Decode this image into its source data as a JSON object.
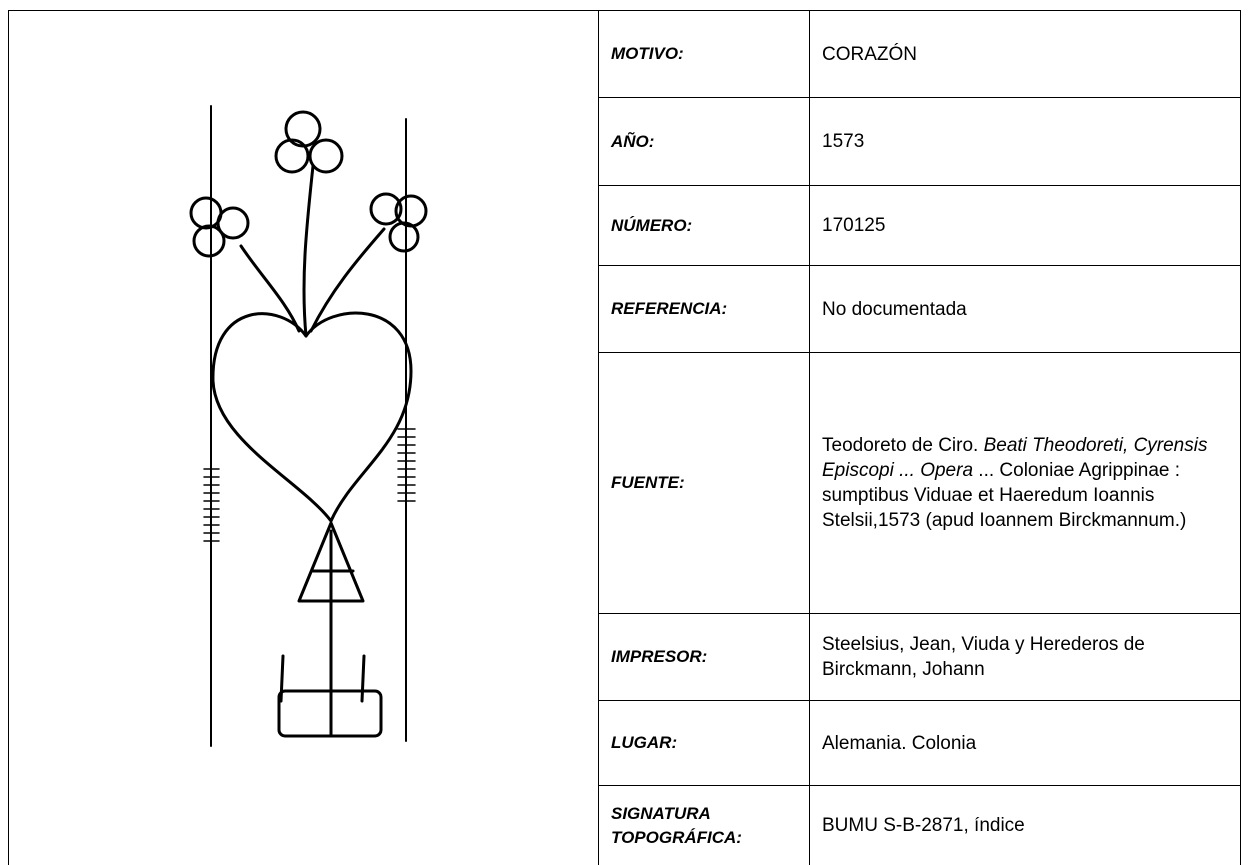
{
  "table": {
    "rows": [
      {
        "label": "MOTIVO:",
        "value": "CORAZÓN"
      },
      {
        "label": "AÑO:",
        "value": "1573"
      },
      {
        "label": "NÚMERO:",
        "value": "170125"
      },
      {
        "label": "REFERENCIA:",
        "value": "No documentada"
      },
      {
        "label": "FUENTE:",
        "value_parts": [
          {
            "text": "Teodoreto de Ciro. ",
            "italic": false
          },
          {
            "text": "Beati Theodoreti, Cyrensis Episcopi ... Opera",
            "italic": true
          },
          {
            "text": "  ... Coloniae Agrippinae : sumptibus Viduae et Haeredum Ioannis Stelsii,1573 (apud Ioannem Birckmannum.)",
            "italic": false
          }
        ]
      },
      {
        "label": "IMPRESOR:",
        "value": "Steelsius, Jean, Viuda y Herederos de Birckmann, Johann"
      },
      {
        "label": "LUGAR:",
        "value": "Alemania. Colonia"
      },
      {
        "label": "SIGNATURA TOPOGRÁFICA:",
        "value": "BUMU S-B-2871, índice"
      }
    ]
  }
}
